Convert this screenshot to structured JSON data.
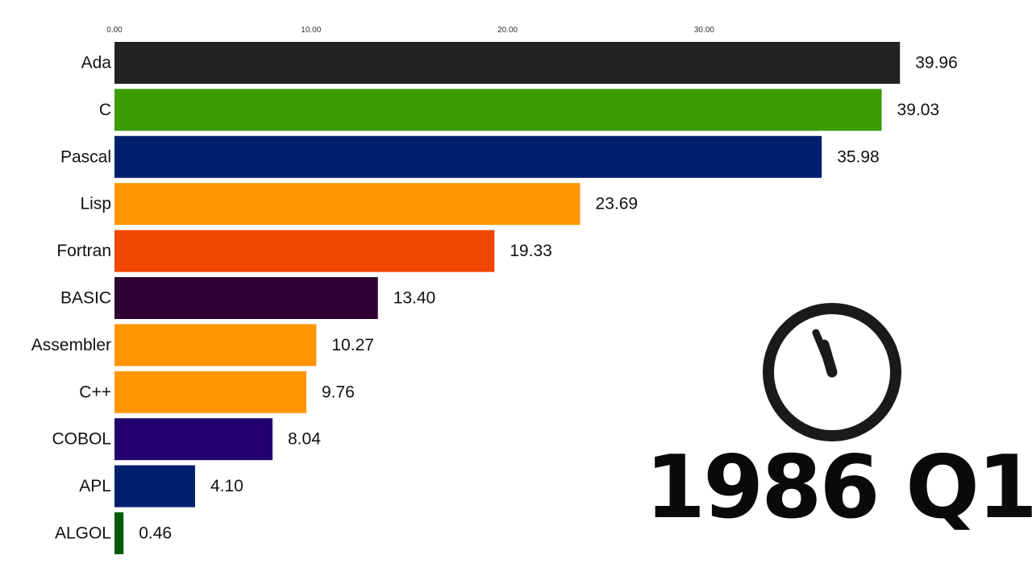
{
  "period": "1986 Q1",
  "clock": {
    "icon": "clock-icon",
    "hand_color": "#1a1a1a"
  },
  "chart_data": {
    "type": "bar",
    "orientation": "horizontal",
    "title": "",
    "xlabel": "",
    "ylabel": "",
    "xlim": [
      0,
      40
    ],
    "x_ticks": [
      0,
      10,
      20,
      30
    ],
    "x_tick_labels": [
      "0.00",
      "10.00",
      "20.00",
      "30.00"
    ],
    "x_tick_position": "top",
    "grid": false,
    "legend": "none",
    "categories": [
      "Ada",
      "C",
      "Pascal",
      "Lisp",
      "Fortran",
      "BASIC",
      "Assembler",
      "C++",
      "COBOL",
      "APL",
      "ALGOL"
    ],
    "values": [
      39.96,
      39.03,
      35.98,
      23.69,
      19.33,
      13.4,
      10.27,
      9.76,
      8.04,
      4.1,
      0.46
    ],
    "value_labels": [
      "39.96",
      "39.03",
      "35.98",
      "23.69",
      "19.33",
      "13.40",
      "10.27",
      "9.76",
      "8.04",
      "4.10",
      "0.46"
    ],
    "colors": [
      "#222222",
      "#3a9c00",
      "#00206e",
      "#ff9600",
      "#f04600",
      "#300032",
      "#ff9600",
      "#ff9600",
      "#23006e",
      "#00206e",
      "#005a00"
    ]
  }
}
